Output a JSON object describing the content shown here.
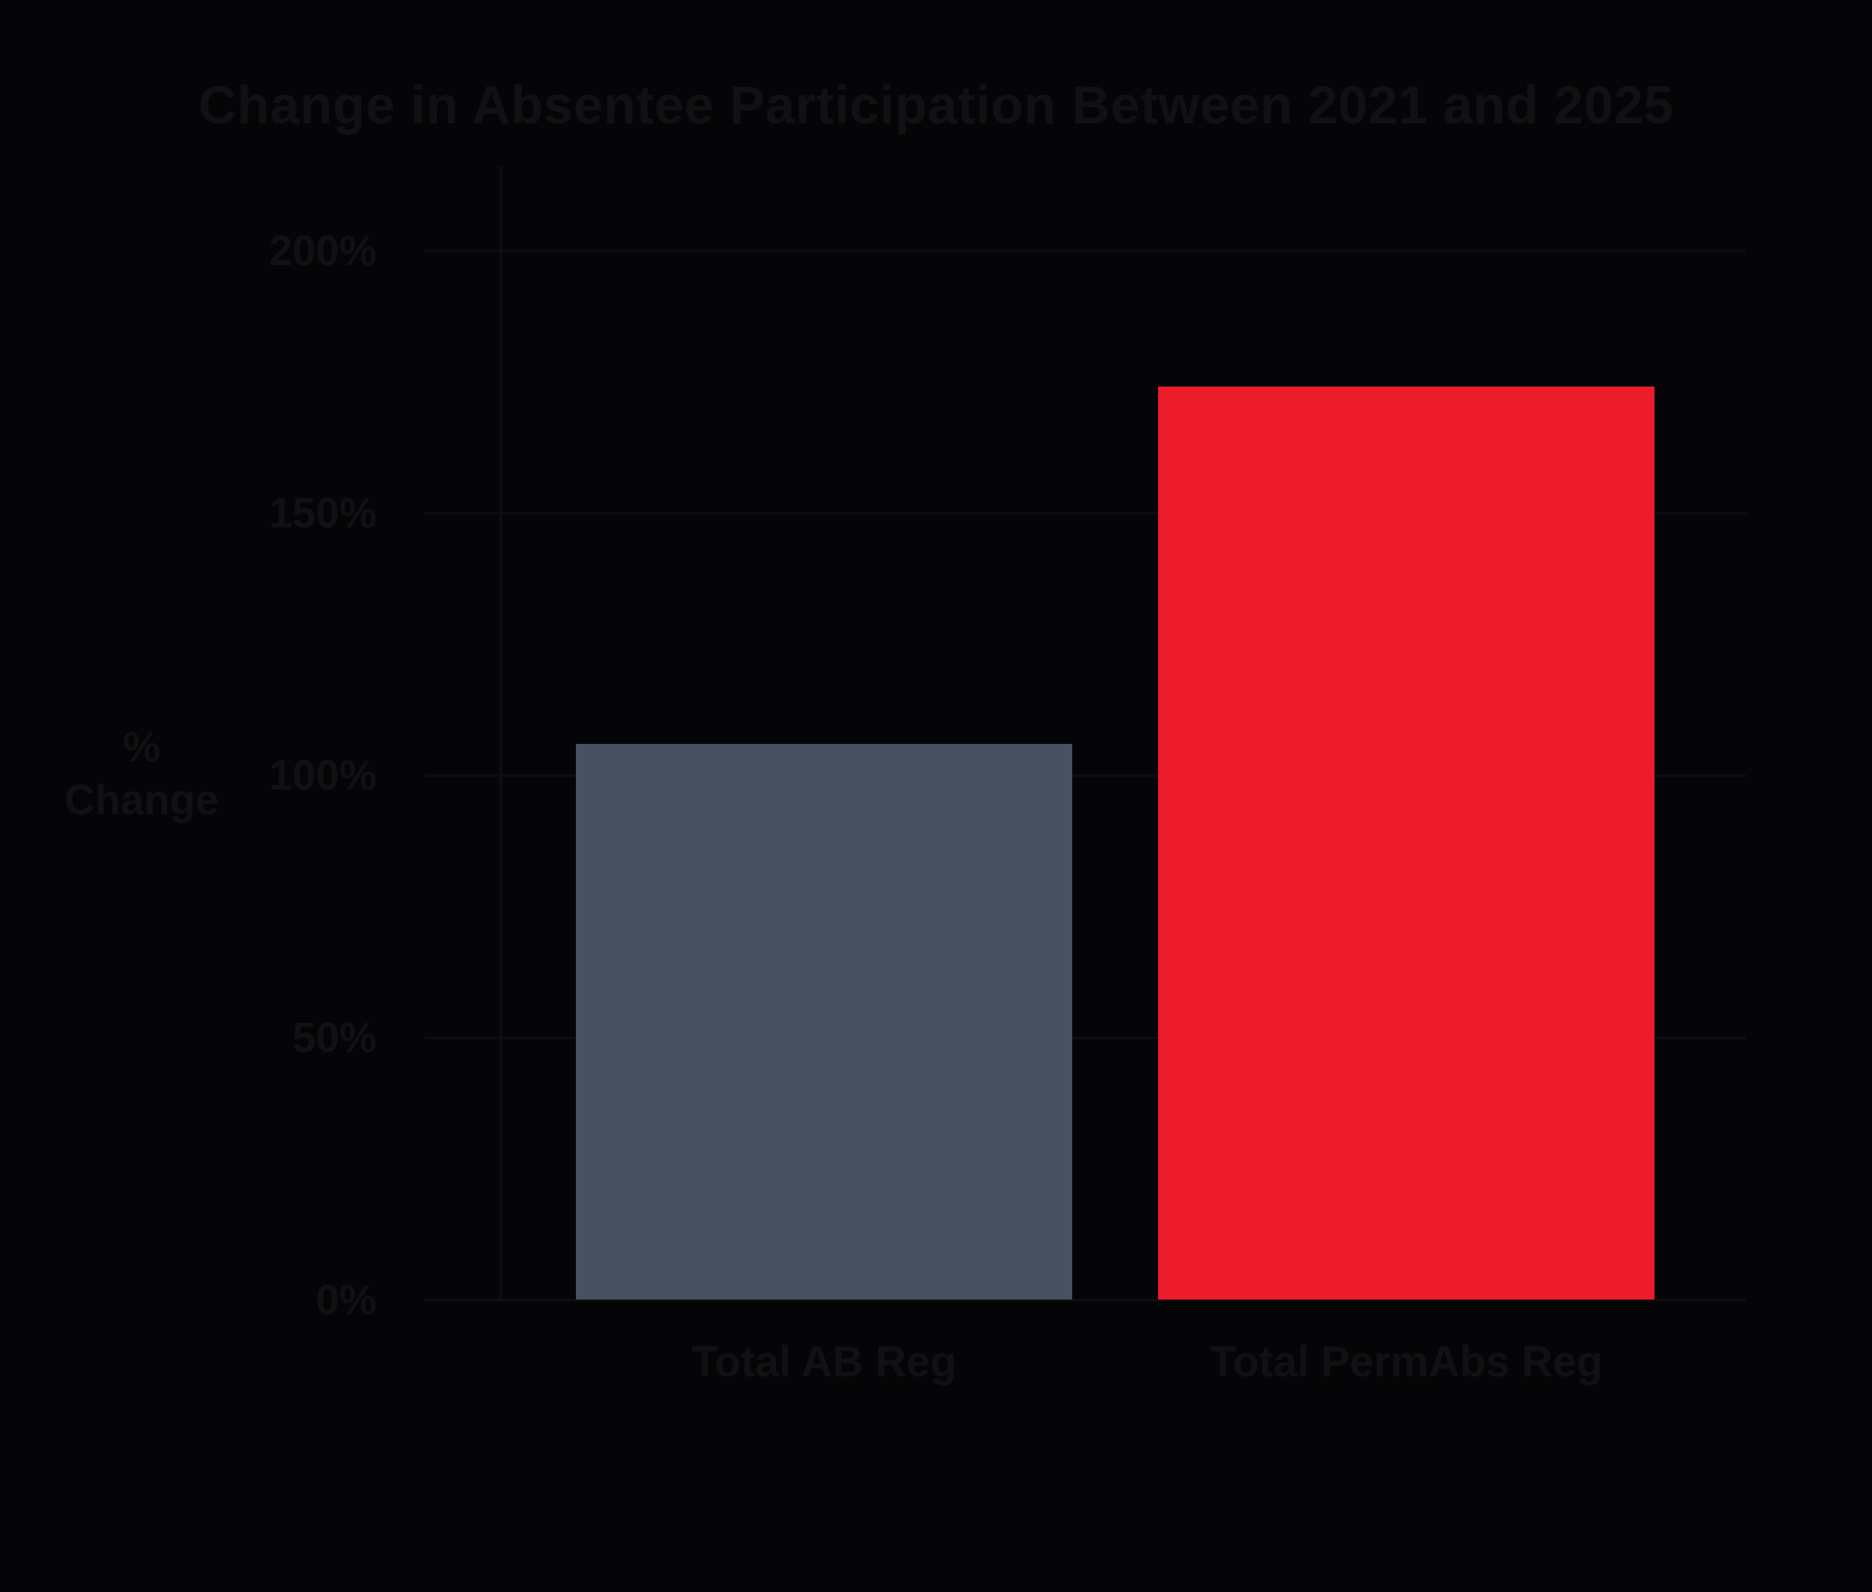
{
  "title": "Change in Absentee Participation Between 2021 and 2025",
  "colors": {
    "background": "#050507",
    "text": "#111114",
    "gridline": "#0d0d10",
    "axis_line": "#0d0d10",
    "bar_gray": "#475160",
    "bar_red": "#ec1c2b"
  },
  "chart_data": {
    "type": "bar",
    "title": "Change in Absentee Participation Between 2021 and 2025",
    "categories": [
      "Total AB Reg",
      "Total PermAbs Reg"
    ],
    "values": [
      106,
      174
    ],
    "bar_colors": [
      "#475160",
      "#ec1c2b"
    ],
    "xlabel": "",
    "ylabel": "% Change",
    "ylabel_lines": [
      "%",
      "Change"
    ],
    "yticks": {
      "labels": [
        "0%",
        "50%",
        "100%",
        "150%",
        "200%"
      ],
      "values": [
        0,
        50,
        100,
        150,
        200
      ]
    },
    "ylim": [
      0,
      216
    ],
    "grid": "horizontal gridlines on",
    "legend": "none"
  }
}
